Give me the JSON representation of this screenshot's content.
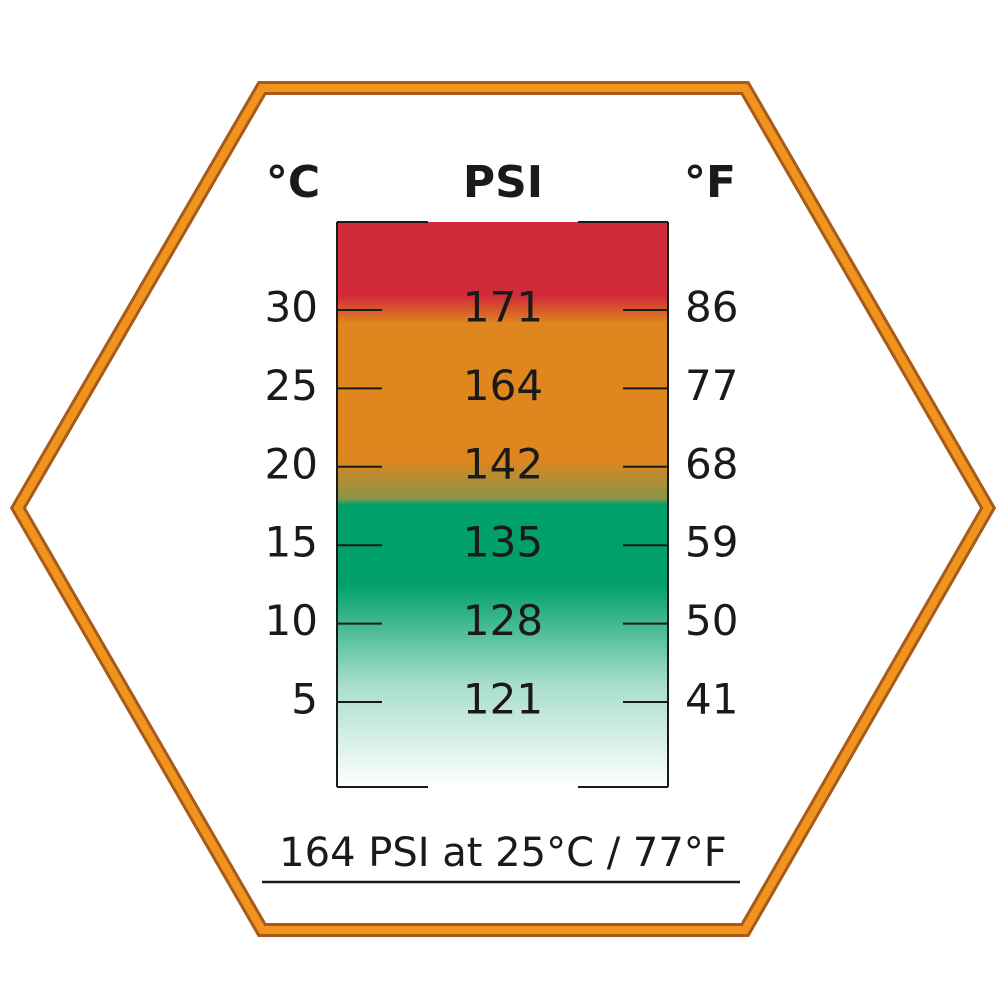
{
  "headers": {
    "celsius": "°C",
    "psi": "PSI",
    "fahrenheit": "°F"
  },
  "rows": [
    {
      "celsius": "30",
      "psi": "171",
      "fahrenheit": "86"
    },
    {
      "celsius": "25",
      "psi": "164",
      "fahrenheit": "77"
    },
    {
      "celsius": "20",
      "psi": "142",
      "fahrenheit": "68"
    },
    {
      "celsius": "15",
      "psi": "135",
      "fahrenheit": "59"
    },
    {
      "celsius": "10",
      "psi": "128",
      "fahrenheit": "50"
    },
    {
      "celsius": "5",
      "psi": "121",
      "fahrenheit": "41"
    }
  ],
  "footer": "164 PSI at 25°C / 77°F"
}
